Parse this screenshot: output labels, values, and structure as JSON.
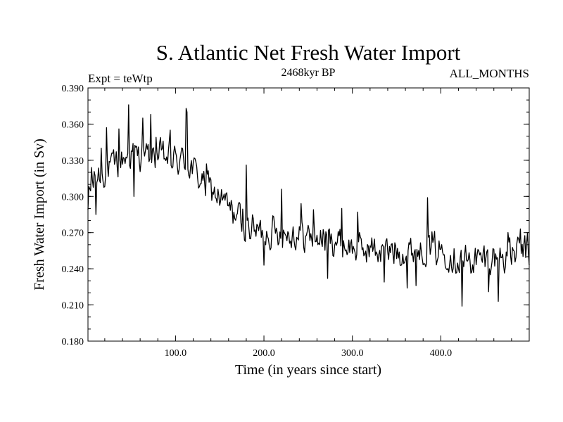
{
  "chart_data": {
    "type": "line",
    "title": "S. Atlantic Net Fresh Water Import",
    "subtitle": "2468kyr BP",
    "experiment_label": "Expt = teWtp",
    "period_label": "ALL_MONTHS",
    "xlabel": "Time (in years since start)",
    "ylabel": "Fresh Water Import (in Sv)",
    "xlim": [
      1,
      500
    ],
    "ylim": [
      0.18,
      0.39
    ],
    "x_ticks": [
      100,
      200,
      300,
      400
    ],
    "x_tick_labels": [
      "100.0",
      "200.0",
      "300.0",
      "400.0"
    ],
    "y_ticks": [
      0.18,
      0.21,
      0.24,
      0.27,
      0.3,
      0.33,
      0.36,
      0.39
    ],
    "y_tick_labels": [
      "0.180",
      "0.210",
      "0.240",
      "0.270",
      "0.300",
      "0.330",
      "0.360",
      "0.390"
    ],
    "grid": false,
    "series": [
      {
        "name": "Fresh Water Import",
        "color": "#000000",
        "trend": [
          [
            1,
            0.302
          ],
          [
            10,
            0.316
          ],
          [
            20,
            0.321
          ],
          [
            30,
            0.325
          ],
          [
            40,
            0.331
          ],
          [
            50,
            0.336
          ],
          [
            60,
            0.335
          ],
          [
            70,
            0.333
          ],
          [
            80,
            0.334
          ],
          [
            90,
            0.332
          ],
          [
            100,
            0.329
          ],
          [
            110,
            0.33
          ],
          [
            120,
            0.322
          ],
          [
            130,
            0.313
          ],
          [
            140,
            0.306
          ],
          [
            150,
            0.299
          ],
          [
            160,
            0.291
          ],
          [
            170,
            0.284
          ],
          [
            180,
            0.277
          ],
          [
            190,
            0.272
          ],
          [
            200,
            0.27
          ],
          [
            210,
            0.271
          ],
          [
            220,
            0.27
          ],
          [
            230,
            0.269
          ],
          [
            240,
            0.268
          ],
          [
            250,
            0.267
          ],
          [
            260,
            0.265
          ],
          [
            270,
            0.265
          ],
          [
            280,
            0.264
          ],
          [
            290,
            0.26
          ],
          [
            300,
            0.257
          ],
          [
            310,
            0.256
          ],
          [
            320,
            0.257
          ],
          [
            330,
            0.255
          ],
          [
            340,
            0.254
          ],
          [
            350,
            0.256
          ],
          [
            360,
            0.254
          ],
          [
            370,
            0.256
          ],
          [
            380,
            0.256
          ],
          [
            390,
            0.258
          ],
          [
            400,
            0.255
          ],
          [
            410,
            0.251
          ],
          [
            420,
            0.248
          ],
          [
            430,
            0.246
          ],
          [
            440,
            0.247
          ],
          [
            450,
            0.249
          ],
          [
            460,
            0.249
          ],
          [
            470,
            0.25
          ],
          [
            480,
            0.252
          ],
          [
            490,
            0.254
          ],
          [
            500,
            0.256
          ]
        ],
        "extremes": [
          [
            1,
            0.289
          ],
          [
            5,
            0.324
          ],
          [
            10,
            0.285
          ],
          [
            16,
            0.34
          ],
          [
            22,
            0.357
          ],
          [
            36,
            0.356
          ],
          [
            47,
            0.376
          ],
          [
            53,
            0.3
          ],
          [
            63,
            0.365
          ],
          [
            72,
            0.368
          ],
          [
            78,
            0.349
          ],
          [
            94,
            0.355
          ],
          [
            112,
            0.373
          ],
          [
            113,
            0.37
          ],
          [
            135,
            0.327
          ],
          [
            155,
            0.302
          ],
          [
            175,
            0.271
          ],
          [
            180,
            0.326
          ],
          [
            200,
            0.243
          ],
          [
            220,
            0.306
          ],
          [
            242,
            0.294
          ],
          [
            256,
            0.289
          ],
          [
            272,
            0.232
          ],
          [
            288,
            0.29
          ],
          [
            306,
            0.287
          ],
          [
            336,
            0.229
          ],
          [
            354,
            0.243
          ],
          [
            362,
            0.224
          ],
          [
            372,
            0.226
          ],
          [
            385,
            0.299
          ],
          [
            406,
            0.24
          ],
          [
            424,
            0.209
          ],
          [
            454,
            0.221
          ],
          [
            465,
            0.213
          ],
          [
            476,
            0.27
          ],
          [
            490,
            0.273
          ],
          [
            500,
            0.243
          ]
        ],
        "noise_amplitude": 0.012
      }
    ]
  }
}
